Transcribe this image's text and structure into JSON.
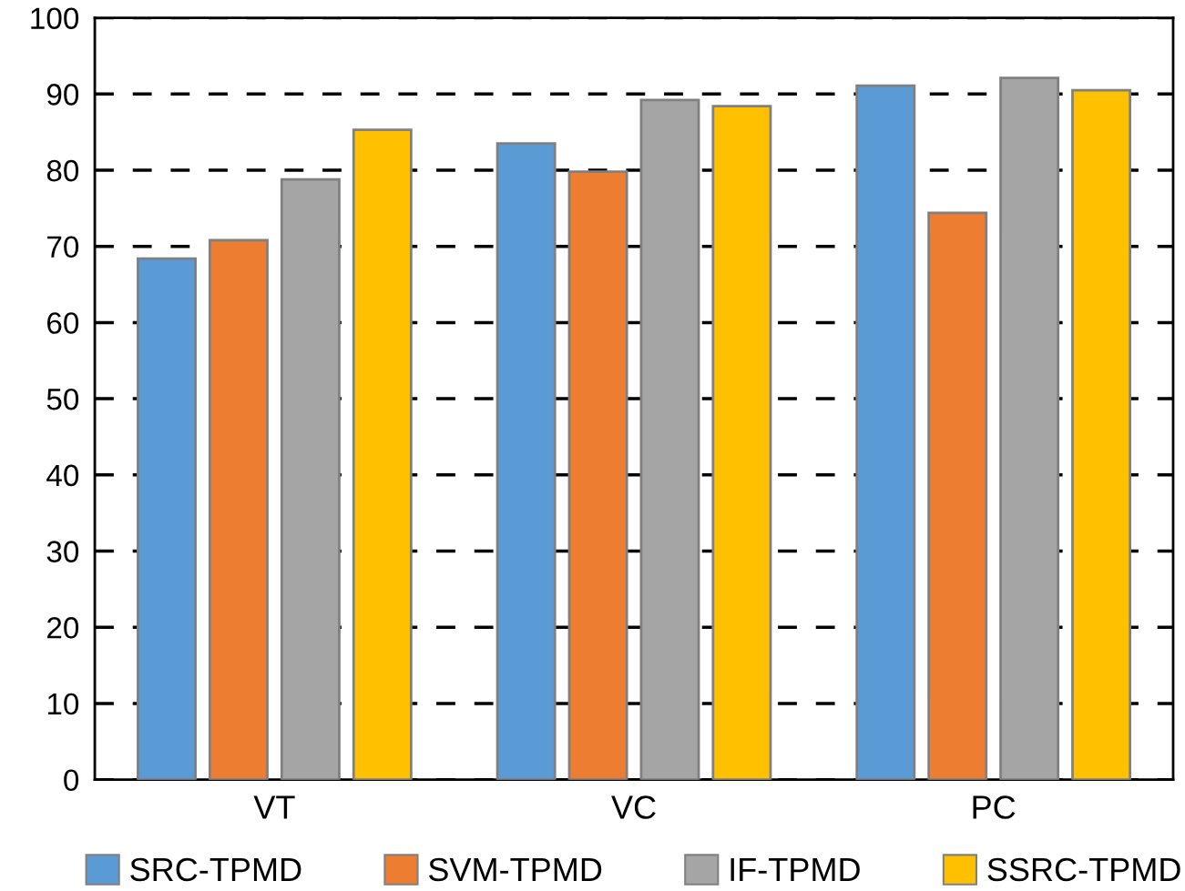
{
  "chart_data": {
    "type": "bar",
    "categories": [
      "VT",
      "VC",
      "PC"
    ],
    "series": [
      {
        "name": "SRC-TPMD",
        "color": "#5b9bd5",
        "values": [
          68.4,
          83.5,
          91.1
        ]
      },
      {
        "name": "SVM-TPMD",
        "color": "#ed7d31",
        "values": [
          70.8,
          79.8,
          74.4
        ]
      },
      {
        "name": "IF-TPMD",
        "color": "#a5a5a5",
        "values": [
          78.8,
          89.2,
          92.1
        ]
      },
      {
        "name": "SSRC-TPMD",
        "color": "#ffc000",
        "values": [
          85.3,
          88.4,
          90.5
        ]
      }
    ],
    "ylim": [
      0,
      100
    ],
    "yticks": [
      0,
      10,
      20,
      30,
      40,
      50,
      60,
      70,
      80,
      90,
      100
    ],
    "grid": "y",
    "line_style": "dashed",
    "legend": "bottom"
  }
}
